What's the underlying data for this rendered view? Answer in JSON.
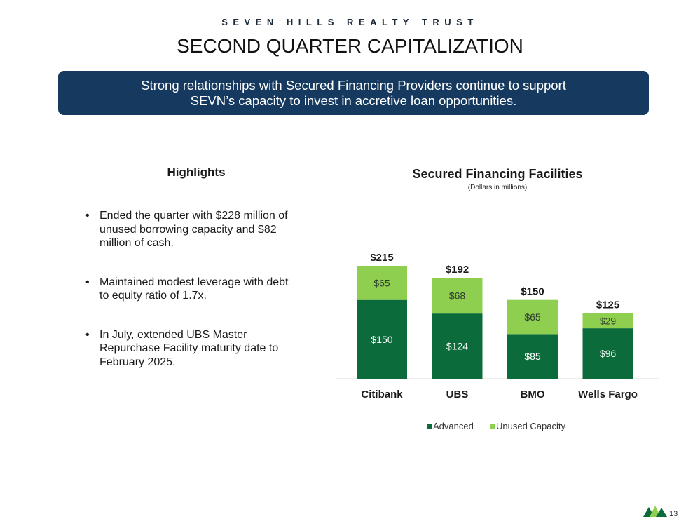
{
  "header": {
    "company": "SEVEN HILLS REALTY TRUST",
    "title": "SECOND QUARTER CAPITALIZATION"
  },
  "banner": {
    "line1": "Strong relationships with Secured Financing Providers continue to support",
    "line2": "SEVN’s capacity to invest in accretive loan opportunities."
  },
  "highlights": {
    "heading": "Highlights",
    "bullets": [
      "Ended the quarter with $228 million of unused borrowing capacity and $82 million of cash.",
      "Maintained modest leverage with debt to equity ratio of 1.7x.",
      "In July, extended UBS Master Repurchase Facility maturity date to February 2025."
    ]
  },
  "chart_data": {
    "type": "bar",
    "stacked": true,
    "title": "Secured Financing Facilities",
    "subtitle": "(Dollars in millions)",
    "categories": [
      "Citibank",
      "UBS",
      "BMO",
      "Wells Fargo"
    ],
    "series": [
      {
        "name": "Advanced",
        "color": "#0b6b3a",
        "values": [
          150,
          124,
          85,
          96
        ],
        "labels": [
          "$150",
          "$124",
          "$85",
          "$96"
        ]
      },
      {
        "name": "Unused Capacity",
        "color": "#8fcf4f",
        "values": [
          65,
          68,
          65,
          29
        ],
        "labels": [
          "$65",
          "$68",
          "$65",
          "$29"
        ]
      }
    ],
    "totals": [
      215,
      192,
      150,
      125
    ],
    "total_labels": [
      "$215",
      "$192",
      "$150",
      "$125"
    ],
    "ylim": [
      0,
      215
    ],
    "legend": "bottom-center",
    "grid": false
  },
  "footer": {
    "page_number": "13"
  },
  "colors": {
    "navy": "#163a5f",
    "dark_green": "#0b6b3a",
    "light_green": "#8fcf4f"
  }
}
